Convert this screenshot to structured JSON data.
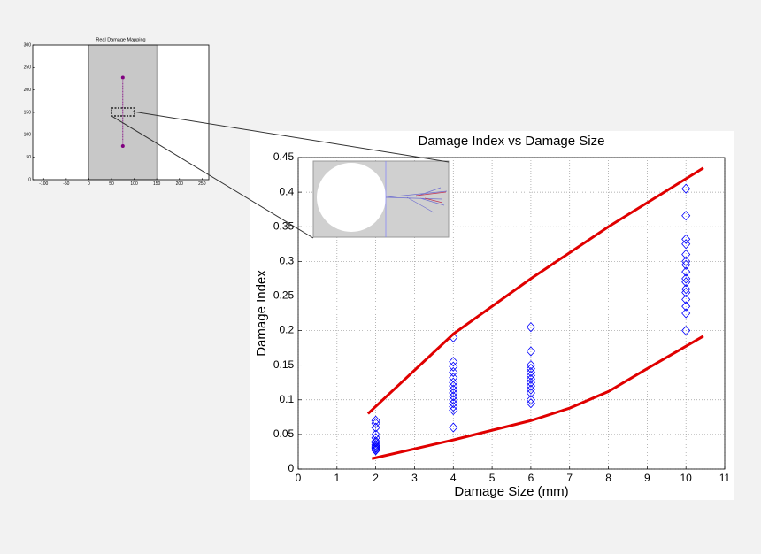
{
  "chart_data": [
    {
      "type": "scatter",
      "title": "Real Damage Mapping",
      "xlim": [
        -124,
        265
      ],
      "ylim": [
        0,
        300
      ],
      "xticks": [
        -100,
        -50,
        0,
        50,
        100,
        150,
        200,
        250
      ],
      "yticks": [
        0,
        50,
        100,
        150,
        200,
        250,
        300
      ],
      "regions": [
        {
          "x": [
            0,
            150
          ],
          "color": "#c8c8c8"
        }
      ],
      "series": [
        {
          "color": "#800080",
          "line": true,
          "marker": "dot",
          "x": [
            75,
            75
          ],
          "y": [
            228,
            75
          ]
        }
      ]
    },
    {
      "type": "scatter",
      "title": "Damage Index vs Damage Size",
      "xlabel": "Damage Size (mm)",
      "ylabel": "Damage Index",
      "xlim": [
        0,
        11
      ],
      "ylim": [
        0,
        0.45
      ],
      "xticks": [
        0,
        1,
        2,
        3,
        4,
        5,
        6,
        7,
        8,
        9,
        10,
        11
      ],
      "yticks": [
        0,
        0.05,
        0.1,
        0.15,
        0.2,
        0.25,
        0.3,
        0.35,
        0.4,
        0.45
      ],
      "grid": true,
      "series": [
        {
          "color": "#0000ff",
          "marker": "diamond",
          "x": [
            2,
            2,
            2,
            2,
            2,
            2,
            2,
            2,
            2,
            2,
            2,
            2,
            2,
            4,
            4,
            4,
            4,
            4,
            4,
            4,
            4,
            4,
            4,
            4,
            4,
            4,
            4,
            4,
            6,
            6,
            6,
            6,
            6,
            6,
            6,
            6,
            6,
            6,
            6,
            6,
            6,
            10,
            10,
            10,
            10,
            10,
            10,
            10,
            10,
            10,
            10,
            10,
            10,
            10,
            10,
            10,
            10
          ],
          "y": [
            0.07,
            0.066,
            0.06,
            0.05,
            0.045,
            0.04,
            0.038,
            0.035,
            0.033,
            0.031,
            0.03,
            0.028,
            0.027,
            0.19,
            0.155,
            0.148,
            0.14,
            0.132,
            0.125,
            0.12,
            0.115,
            0.11,
            0.105,
            0.1,
            0.095,
            0.09,
            0.085,
            0.06,
            0.205,
            0.17,
            0.15,
            0.145,
            0.14,
            0.135,
            0.13,
            0.125,
            0.12,
            0.115,
            0.11,
            0.1,
            0.095,
            0.405,
            0.366,
            0.332,
            0.325,
            0.31,
            0.3,
            0.295,
            0.285,
            0.275,
            0.27,
            0.26,
            0.255,
            0.245,
            0.235,
            0.225,
            0.2
          ]
        },
        {
          "color": "#e00000",
          "line": true,
          "x": [
            1.8,
            4,
            6,
            8,
            10.45
          ],
          "y": [
            0.08,
            0.195,
            0.275,
            0.35,
            0.435
          ]
        },
        {
          "color": "#e00000",
          "line": true,
          "x": [
            1.9,
            4,
            6,
            7,
            8,
            9,
            10.45
          ],
          "y": [
            0.015,
            0.042,
            0.07,
            0.088,
            0.112,
            0.145,
            0.192
          ]
        }
      ]
    }
  ]
}
